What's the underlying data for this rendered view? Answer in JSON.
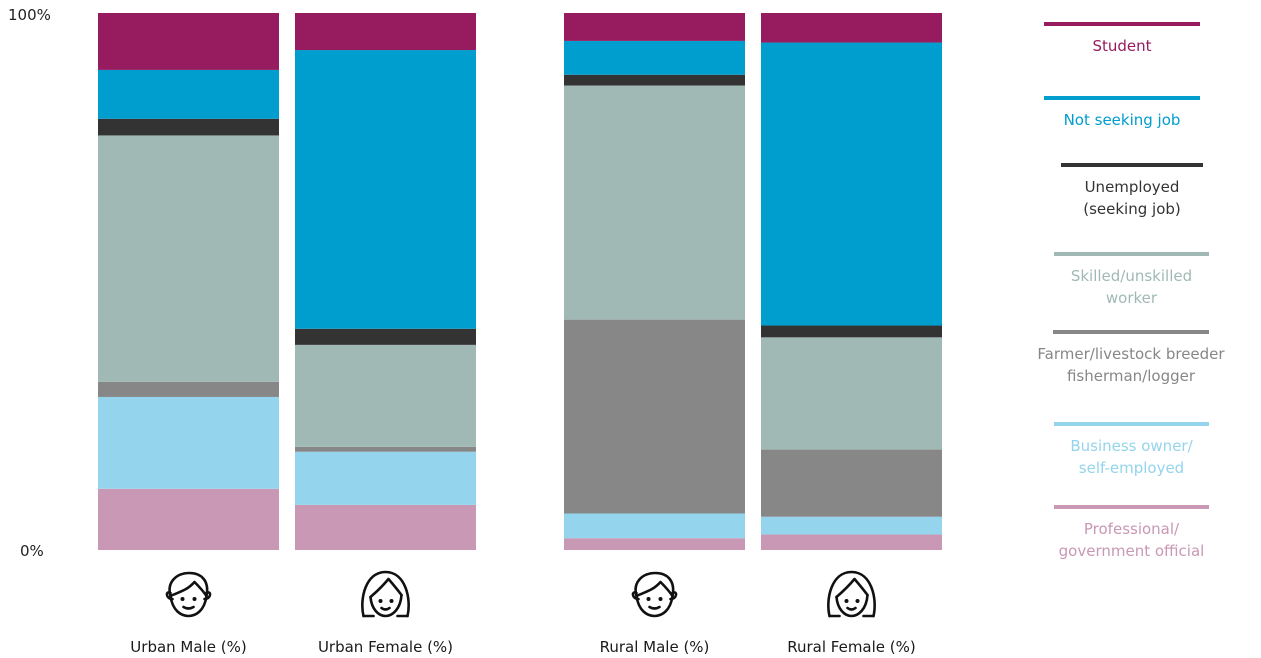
{
  "chart_data": {
    "type": "bar",
    "stacked": true,
    "percent": true,
    "yticks": [
      "100%",
      "0%"
    ],
    "ylim": [
      0,
      100
    ],
    "categories": [
      "Urban Male (%)",
      "Urban Female (%)",
      "Rural Male (%)",
      "Rural Female (%)"
    ],
    "category_icons": [
      "male-face-icon",
      "female-face-icon",
      "male-face-icon",
      "female-face-icon"
    ],
    "series": [
      {
        "name": "Professional/ government official",
        "legend_lines": [
          "Professional/",
          "government official"
        ],
        "color": "#c898b4",
        "values": [
          11.4,
          8.4,
          2.2,
          2.9
        ]
      },
      {
        "name": "Business owner/ self-employed",
        "legend_lines": [
          "Business owner/",
          "self-employed"
        ],
        "color": "#94d4ec",
        "values": [
          17.1,
          9.9,
          4.6,
          3.3
        ]
      },
      {
        "name": "Farmer/livestock breeder fisherman/logger",
        "legend_lines": [
          "Farmer/livestock breeder",
          "fisherman/logger"
        ],
        "color": "#878787",
        "values": [
          2.8,
          0.9,
          36.1,
          12.5
        ]
      },
      {
        "name": "Skilled/unskilled worker",
        "legend_lines": [
          "Skilled/unskilled",
          "worker"
        ],
        "color": "#a0b9b4",
        "values": [
          45.9,
          19.0,
          43.6,
          20.9
        ]
      },
      {
        "name": "Unemployed (seeking job)",
        "legend_lines": [
          "Unemployed",
          "(seeking job)"
        ],
        "color": "#333333",
        "values": [
          3.1,
          3.0,
          2.0,
          2.2
        ]
      },
      {
        "name": "Not seeking job",
        "legend_lines": [
          "Not seeking job"
        ],
        "color": "#009dcf",
        "values": [
          9.1,
          51.9,
          6.3,
          52.7
        ]
      },
      {
        "name": "Student",
        "legend_lines": [
          "Student"
        ],
        "color": "#961c5f",
        "values": [
          10.6,
          6.9,
          5.2,
          5.5
        ]
      }
    ],
    "legend_order": [
      "Student",
      "Not seeking job",
      "Unemployed (seeking job)",
      "Skilled/unskilled worker",
      "Farmer/livestock breeder fisherman/logger",
      "Business owner/ self-employed",
      "Professional/ government official"
    ],
    "legend_placement": "right",
    "grid": false
  }
}
